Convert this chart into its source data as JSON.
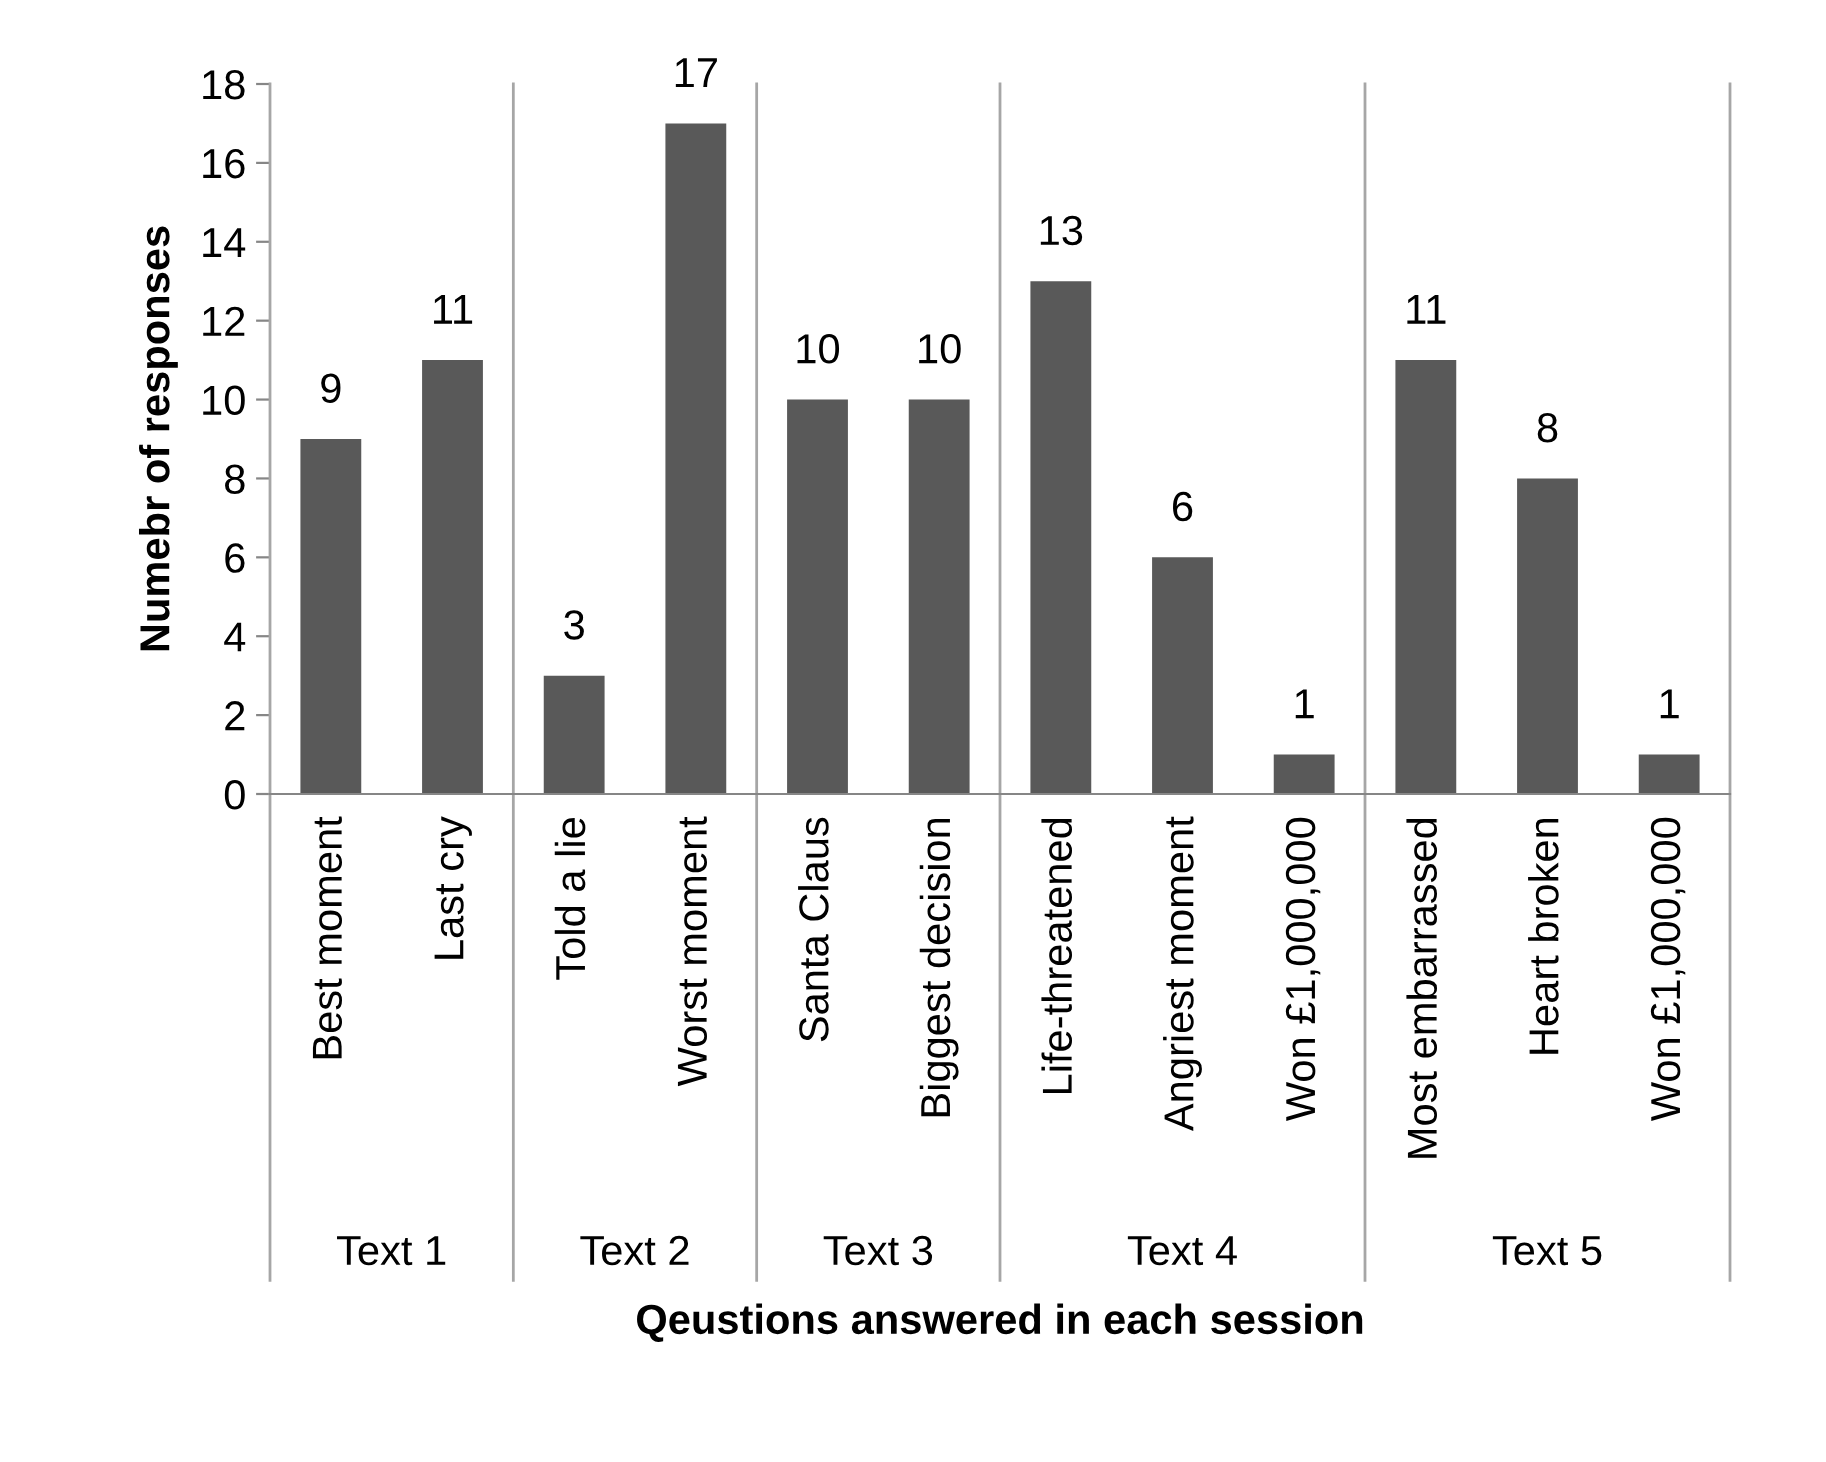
{
  "chart_data": {
    "type": "bar",
    "ylabel": "Numebr of responses",
    "xlabel": "Qeustions answered in each session",
    "categories": [
      "Best moment",
      "Last cry",
      "Told a lie",
      "Worst moment",
      "Santa Claus",
      "Biggest decision",
      "Life-threatened",
      "Angriest moment",
      "Won £1,000,000",
      "Most embarrassed",
      "Heart broken",
      "Won £1,000,000"
    ],
    "values": [
      9,
      11,
      3,
      17,
      10,
      10,
      13,
      6,
      1,
      11,
      8,
      1
    ],
    "color": "#595959",
    "ylim": [
      0,
      18
    ],
    "yticks": [
      0,
      2,
      4,
      6,
      8,
      10,
      12,
      14,
      16,
      18
    ],
    "grid": false,
    "data_labels": true,
    "annotations": [
      "Text 1",
      "Text 2",
      "Text 3",
      "Text 4",
      "Text 5"
    ]
  }
}
